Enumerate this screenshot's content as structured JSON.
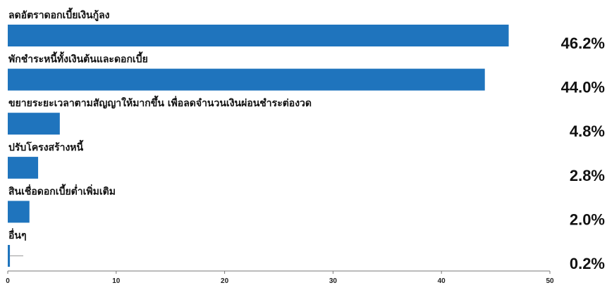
{
  "chart_data": {
    "type": "bar",
    "orientation": "horizontal",
    "categories": [
      "ลดอัตราดอกเบี้ยเงินกู้ลง",
      "พักชำระหนี้ทั้งเงินต้นและดอกเบี้ย",
      "ขยายระยะเวลาตามสัญญาให้มากขึ้น เพื่อลดจำนวนเงินผ่อนชำระต่องวด",
      "ปรับโครงสร้างหนี้",
      "สินเชื่อดอกเบี้ยต่ำเพิ่มเติม",
      "อื่นๆ"
    ],
    "values": [
      46.2,
      44.0,
      4.8,
      2.8,
      2.0,
      0.2
    ],
    "value_labels": [
      "46.2%",
      "44.0%",
      "4.8%",
      "2.8%",
      "2.0%",
      "0.2%"
    ],
    "xlim": [
      0,
      50
    ],
    "xticks": [
      0,
      10,
      20,
      30,
      40,
      50
    ],
    "bar_color": "#1f74bd",
    "grid": false
  }
}
